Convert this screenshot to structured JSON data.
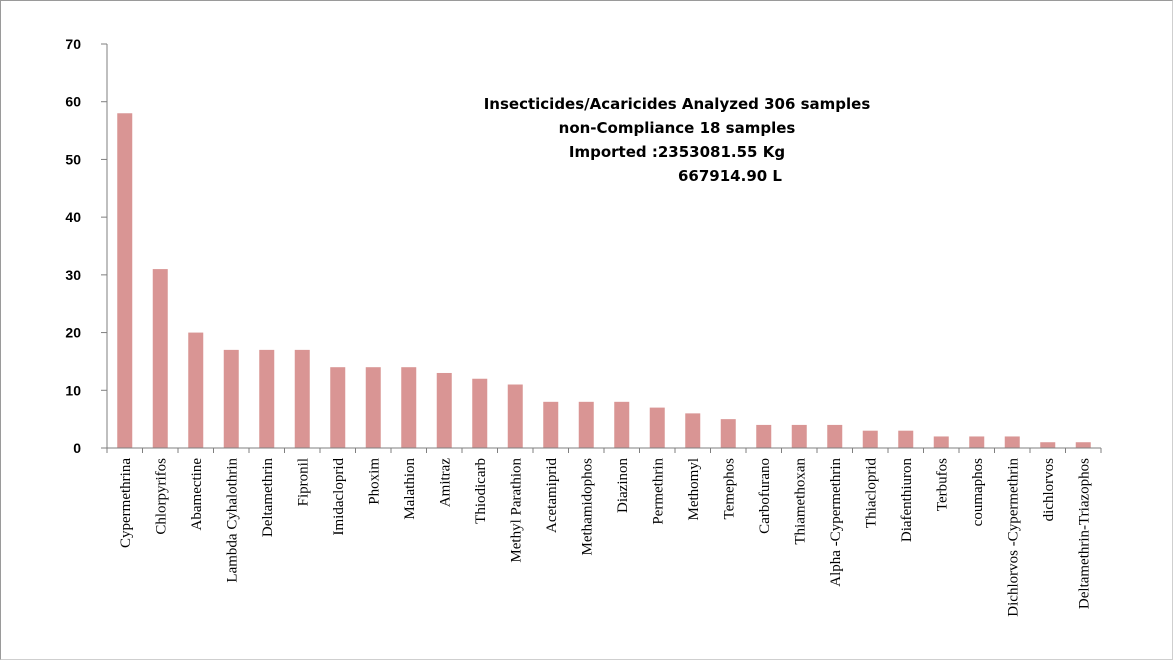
{
  "chart_data": {
    "type": "bar",
    "title": "",
    "xlabel": "",
    "ylabel": "",
    "ylim": [
      0,
      70
    ],
    "yticks": [
      0,
      10,
      20,
      30,
      40,
      50,
      60,
      70
    ],
    "grid": false,
    "legend": "none",
    "bar_color": "#d99594",
    "categories": [
      "Cypermethrina",
      "Chlorpyrifos",
      "Abamectine",
      "Lambda Cyhalothrin",
      "Deltamethrin",
      "Fipronil",
      "Imidacloprid",
      "Phoxim",
      "Malathion",
      "Amitraz",
      "Thiodicarb",
      "Methyl Parathion",
      "Acetamiprid",
      "Methamidophos",
      "Diazinon",
      "Permethrin",
      "Methomyl",
      "Temephos",
      "Carbofurano",
      "Thiamethoxan",
      "Alpha -Cypermethrin",
      "Thiacloprid",
      "Diafenthiuron",
      "Terbufos",
      "coumaphos",
      "Dichlorvos -Cypermethrin",
      "dichlorvos",
      "Deltamethrin-Triazophos"
    ],
    "values": [
      58,
      31,
      20,
      17,
      17,
      17,
      14,
      14,
      14,
      13,
      12,
      11,
      8,
      8,
      8,
      7,
      6,
      5,
      4,
      4,
      4,
      3,
      3,
      2,
      2,
      2,
      1,
      1
    ],
    "annotations": [
      "Insecticides/Acaricides Analyzed  306 samples",
      "non-Compliance   18 samples",
      "Imported :2353081.55 Kg",
      "667914.90 L"
    ]
  }
}
